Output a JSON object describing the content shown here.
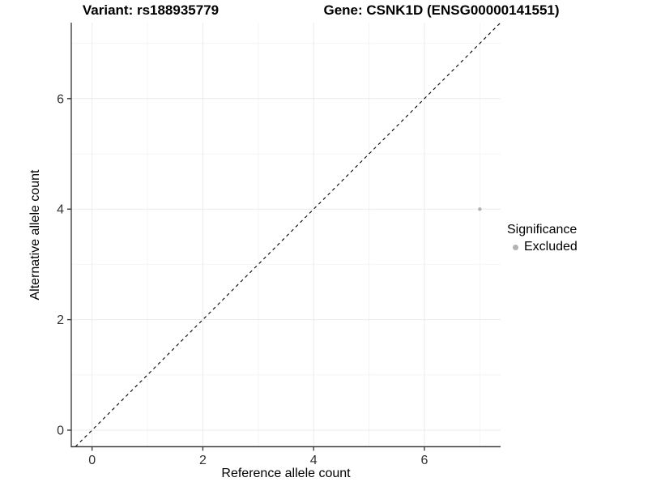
{
  "titles": {
    "variant": "Variant: rs188935779",
    "gene": "Gene: CSNK1D (ENSG00000141551)"
  },
  "axes": {
    "x_label": "Reference allele count",
    "y_label": "Alternative allele count",
    "x_ticks": [
      0,
      2,
      4,
      6
    ],
    "y_ticks": [
      0,
      2,
      4,
      6
    ]
  },
  "legend": {
    "title": "Significance",
    "items": [
      {
        "label": "Excluded",
        "color": "#b3b3b3"
      }
    ]
  },
  "colors": {
    "point": "#b3b3b3",
    "grid_major": "#ebebeb",
    "grid_minor": "#f4f4f4",
    "axis_line": "#404040",
    "identity_line": "#000000",
    "tick_label": "#333333",
    "background": "#ffffff"
  },
  "chart_data": {
    "type": "scatter",
    "title": "Variant: rs188935779 — Gene: CSNK1D (ENSG00000141551)",
    "xlabel": "Reference allele count",
    "ylabel": "Alternative allele count",
    "x_range": [
      -0.375,
      7.375
    ],
    "y_range": [
      -0.3,
      7.375
    ],
    "x_ticks": [
      0,
      2,
      4,
      6
    ],
    "y_ticks": [
      0,
      2,
      4,
      6
    ],
    "x_grid_major": [
      0,
      2,
      4,
      6
    ],
    "x_grid_minor": [
      1,
      3,
      5,
      7
    ],
    "y_grid_major": [
      0,
      2,
      4,
      6
    ],
    "y_grid_minor": [
      1,
      3,
      5,
      7
    ],
    "identity_line": {
      "equation": "y = x",
      "style": "dashed",
      "color": "#000000"
    },
    "series": [
      {
        "name": "Excluded",
        "color": "#b3b3b3",
        "points": [
          {
            "x": 7,
            "y": 4
          }
        ]
      }
    ],
    "legend_title": "Significance",
    "legend_position": "right",
    "grid": true
  }
}
